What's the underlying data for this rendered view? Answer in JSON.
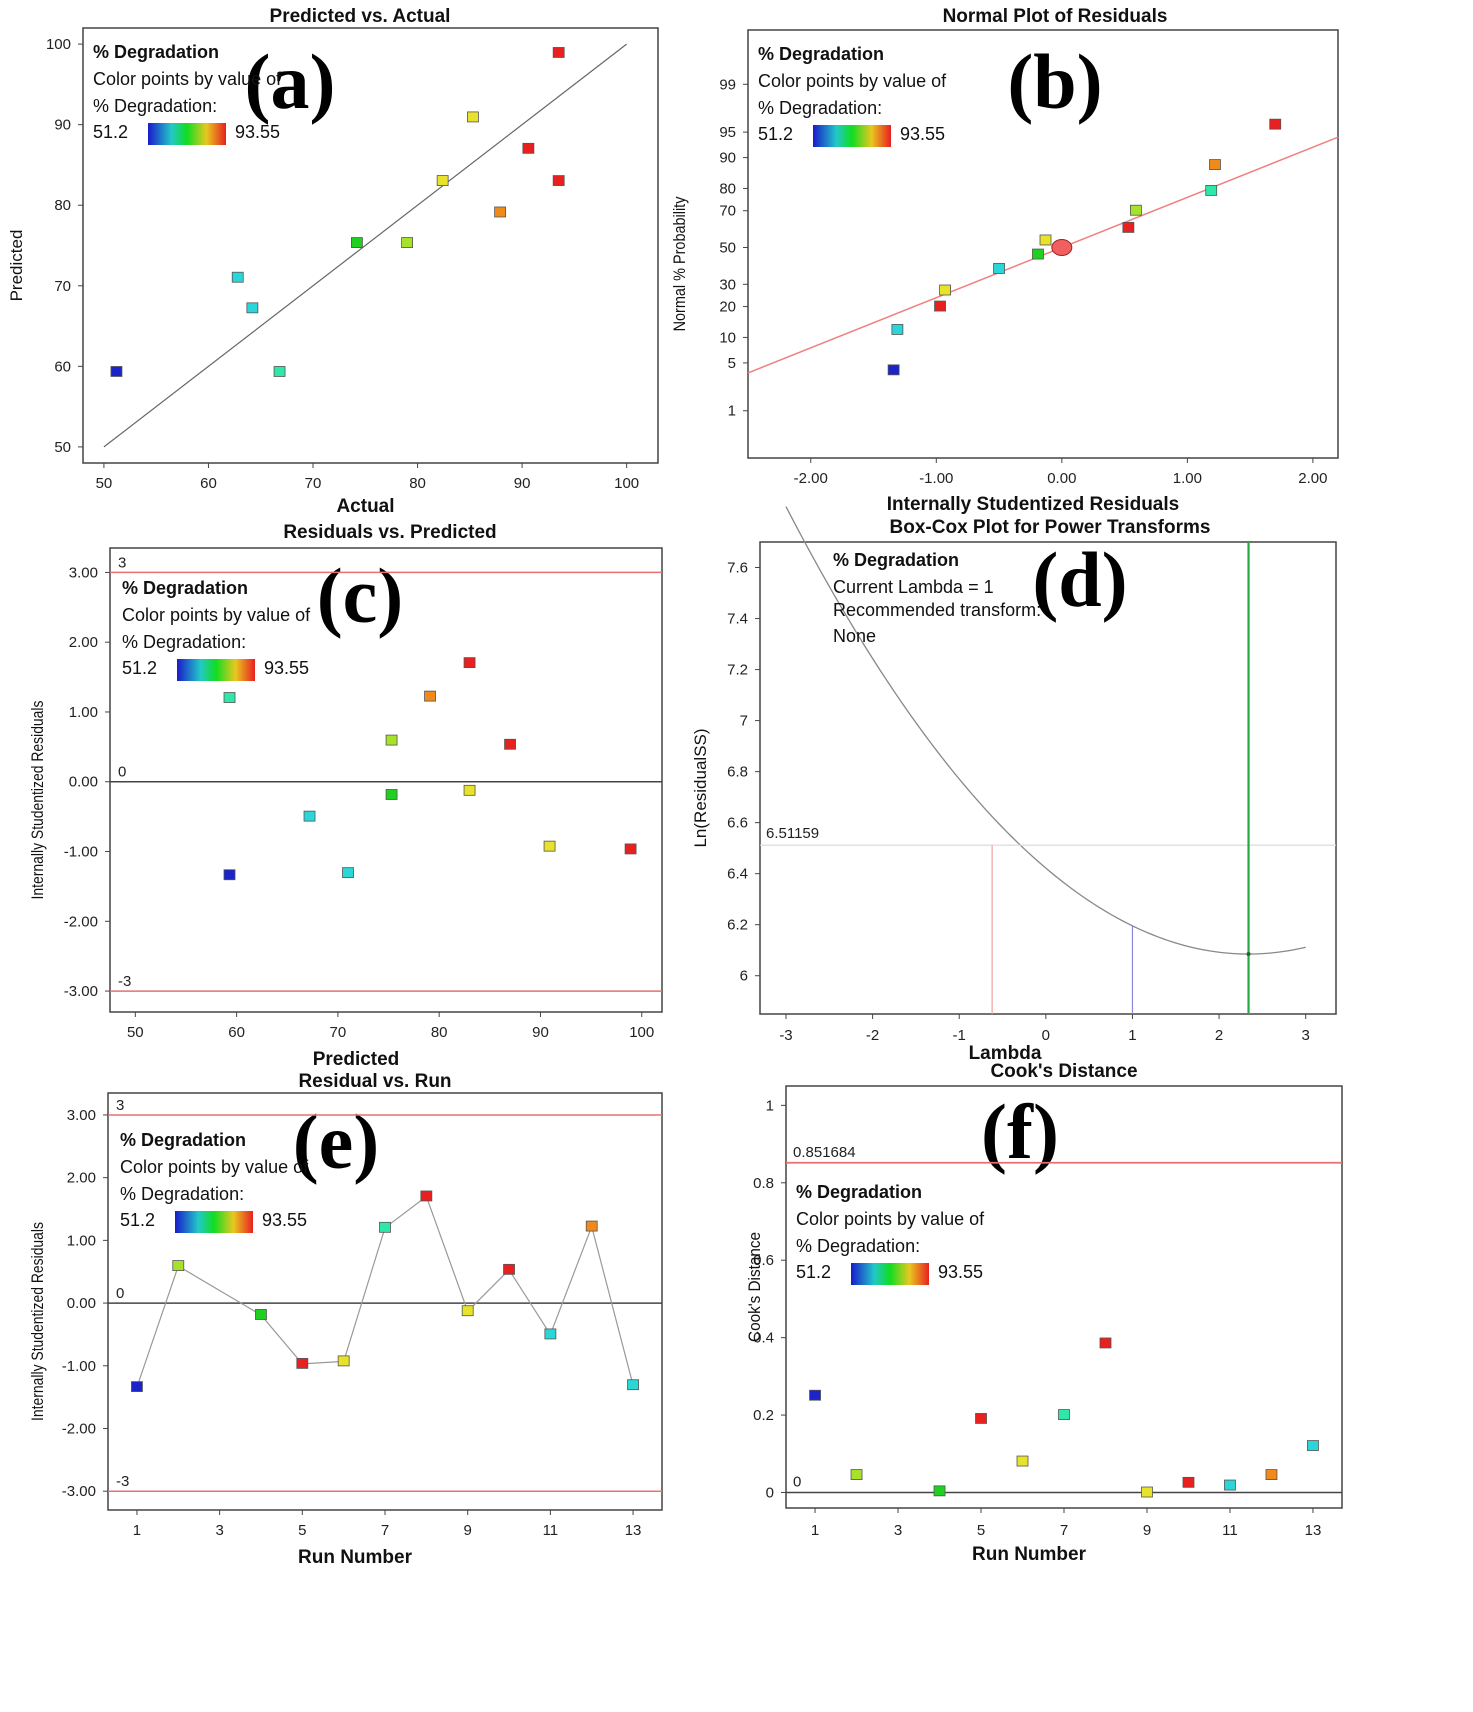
{
  "legend": {
    "title": "% Degradation",
    "line1": "Color points by value of",
    "line2": "% Degradation:",
    "min": "51.2",
    "max": "93.55",
    "min_color": "#2233aa",
    "max_color": "#dd2222"
  },
  "panels": {
    "a": {
      "label": "(a)",
      "title": "Predicted vs. Actual",
      "xlabel": "Actual",
      "ylabel": "Predicted"
    },
    "b": {
      "label": "(b)",
      "title": "Normal Plot of Residuals",
      "xlabel": "Internally Studentized Residuals",
      "ylabel": "Normal % Probability"
    },
    "c": {
      "label": "(c)",
      "title": "Residuals vs. Predicted",
      "xlabel": "Predicted",
      "ylabel": "Internally Studentized Residuals",
      "upper_ref": "3",
      "zero_ref": "0",
      "lower_ref": "-3"
    },
    "d": {
      "label": "(d)",
      "title": "Box-Cox Plot for Power Transforms",
      "xlabel": "Lambda",
      "ylabel": "Ln(ResidualSS)",
      "legend_title": "% Degradation",
      "current_lambda": "Current Lambda = 1",
      "recommended": "Recommended transform:",
      "recommended_value": "None",
      "ci_label": "6.51159"
    },
    "e": {
      "label": "(e)",
      "title": "Residual vs. Run",
      "xlabel": "Run Number",
      "ylabel": "Internally Studentized Residuals",
      "upper_ref": "3",
      "zero_ref": "0",
      "lower_ref": "-3"
    },
    "f": {
      "label": "(f)",
      "title": "Cook's Distance",
      "xlabel": "Run Number",
      "ylabel": "Cook's Distance",
      "upper_ref": "0.851684",
      "zero_ref": "0"
    }
  },
  "chart_data": [
    {
      "id": "a",
      "type": "scatter",
      "title": "Predicted vs. Actual",
      "xlabel": "Actual",
      "ylabel": "Predicted",
      "xlim": [
        48,
        103
      ],
      "ylim": [
        48,
        102
      ],
      "xticks": [
        "50",
        "60",
        "70",
        "80",
        "90",
        "100"
      ],
      "yticks": [
        "50",
        "60",
        "70",
        "80",
        "90",
        "100"
      ],
      "points": [
        {
          "x": 51.2,
          "y": 59.3,
          "c": "#1a24c8"
        },
        {
          "x": 62.8,
          "y": 71.0,
          "c": "#2bd6d8"
        },
        {
          "x": 64.2,
          "y": 67.2,
          "c": "#2bd6d8"
        },
        {
          "x": 66.8,
          "y": 59.3,
          "c": "#2de8a8"
        },
        {
          "x": 74.2,
          "y": 75.3,
          "c": "#1fd01f"
        },
        {
          "x": 79.0,
          "y": 75.3,
          "c": "#a6e22a"
        },
        {
          "x": 82.4,
          "y": 83.0,
          "c": "#e8e22a"
        },
        {
          "x": 85.3,
          "y": 90.9,
          "c": "#e8e22a"
        },
        {
          "x": 87.9,
          "y": 79.1,
          "c": "#f08a1a"
        },
        {
          "x": 90.6,
          "y": 87.0,
          "c": "#e82020"
        },
        {
          "x": 93.5,
          "y": 83.0,
          "c": "#e82020"
        },
        {
          "x": 93.5,
          "y": 98.9,
          "c": "#e82020"
        }
      ],
      "ref_line": [
        [
          50,
          50
        ],
        [
          100,
          100
        ]
      ]
    },
    {
      "id": "b",
      "type": "scatter",
      "title": "Normal Plot of Residuals",
      "xlabel": "Internally Studentized Residuals",
      "ylabel": "Normal % Probability",
      "xlim": [
        -2.5,
        2.2
      ],
      "ylim_probit": [
        -3.0,
        3.1
      ],
      "xticks": [
        "-2.00",
        "-1.00",
        "0.00",
        "1.00",
        "2.00"
      ],
      "yticks": [
        "1",
        "5",
        "10",
        "20",
        "30",
        "50",
        "70",
        "80",
        "90",
        "95",
        "99"
      ],
      "points": [
        {
          "x": -1.34,
          "p": 4,
          "c": "#1a24c8"
        },
        {
          "x": -1.31,
          "p": 12,
          "c": "#2bd6d8"
        },
        {
          "x": -0.97,
          "p": 20,
          "c": "#e82020"
        },
        {
          "x": -0.93,
          "p": 27,
          "c": "#e8e22a"
        },
        {
          "x": -0.5,
          "p": 38,
          "c": "#2bd6d8"
        },
        {
          "x": -0.19,
          "p": 46,
          "c": "#1fd01f"
        },
        {
          "x": -0.13,
          "p": 54,
          "c": "#e8e22a"
        },
        {
          "x": 0.53,
          "p": 61,
          "c": "#e82020"
        },
        {
          "x": 0.59,
          "p": 70,
          "c": "#a6e22a"
        },
        {
          "x": 1.19,
          "p": 79,
          "c": "#2de8a8"
        },
        {
          "x": 1.22,
          "p": 88,
          "c": "#f08a1a"
        },
        {
          "x": 1.7,
          "p": 96,
          "c": "#e82020"
        }
      ],
      "center_point": {
        "x": 0.0,
        "p": 50
      },
      "ref_line": {
        "slope_per_z": 0.715
      }
    },
    {
      "id": "c",
      "type": "scatter",
      "title": "Residuals vs. Predicted",
      "xlabel": "Predicted",
      "ylabel": "Internally Studentized Residuals",
      "xlim": [
        47.5,
        102
      ],
      "ylim": [
        -3.3,
        3.35
      ],
      "xticks": [
        "50",
        "60",
        "70",
        "80",
        "90",
        "100"
      ],
      "yticks": [
        "-3.00",
        "-2.00",
        "-1.00",
        "0.00",
        "1.00",
        "2.00",
        "3.00"
      ],
      "ref_lines": [
        3,
        0,
        -3
      ],
      "points": [
        {
          "x": 59.3,
          "y": 1.2,
          "c": "#2de8a8"
        },
        {
          "x": 59.3,
          "y": -1.34,
          "c": "#1a24c8"
        },
        {
          "x": 67.2,
          "y": -0.5,
          "c": "#2bd6d8"
        },
        {
          "x": 71.0,
          "y": -1.31,
          "c": "#2bd6d8"
        },
        {
          "x": 75.3,
          "y": 0.59,
          "c": "#a6e22a"
        },
        {
          "x": 75.3,
          "y": -0.19,
          "c": "#1fd01f"
        },
        {
          "x": 79.1,
          "y": 1.22,
          "c": "#f08a1a"
        },
        {
          "x": 83.0,
          "y": 1.7,
          "c": "#e82020"
        },
        {
          "x": 83.0,
          "y": -0.13,
          "c": "#e8e22a"
        },
        {
          "x": 87.0,
          "y": 0.53,
          "c": "#e82020"
        },
        {
          "x": 90.9,
          "y": -0.93,
          "c": "#e8e22a"
        },
        {
          "x": 98.9,
          "y": -0.97,
          "c": "#e82020"
        }
      ]
    },
    {
      "id": "d",
      "type": "line",
      "title": "Box-Cox Plot for Power Transforms",
      "xlabel": "Lambda",
      "ylabel": "Ln(ResidualSS)",
      "xlim": [
        -3.3,
        3.35
      ],
      "ylim": [
        5.85,
        7.7
      ],
      "xticks": [
        "-3",
        "-2",
        "-1",
        "0",
        "1",
        "2",
        "3"
      ],
      "yticks": [
        "6",
        "6.2",
        "6.4",
        "6.6",
        "6.8",
        "7",
        "7.2",
        "7.4",
        "7.6"
      ],
      "curve": {
        "vertex_lambda": 2.34,
        "vertex_value": 6.085,
        "a": 0.0615,
        "from": -3,
        "to": 3
      },
      "ci_value": 6.51159,
      "ci_low_lambda": -0.62,
      "current_lambda": 1,
      "best_lambda": 2.34
    },
    {
      "id": "e",
      "type": "line",
      "title": "Residual vs. Run",
      "xlabel": "Run Number",
      "ylabel": "Internally Studentized Residuals",
      "xlim": [
        0.3,
        13.7
      ],
      "ylim": [
        -3.3,
        3.35
      ],
      "xticks": [
        "1",
        "3",
        "5",
        "7",
        "9",
        "11",
        "13"
      ],
      "yticks": [
        "-3.00",
        "-2.00",
        "-1.00",
        "0.00",
        "1.00",
        "2.00",
        "3.00"
      ],
      "ref_lines": [
        3,
        0,
        -3
      ],
      "points": [
        {
          "x": 1,
          "y": -1.34,
          "c": "#1a24c8"
        },
        {
          "x": 2,
          "y": 0.59,
          "c": "#a6e22a"
        },
        {
          "x": 4,
          "y": -0.19,
          "c": "#1fd01f"
        },
        {
          "x": 5,
          "y": -0.97,
          "c": "#e82020"
        },
        {
          "x": 6,
          "y": -0.93,
          "c": "#e8e22a"
        },
        {
          "x": 7,
          "y": 1.2,
          "c": "#2de8a8"
        },
        {
          "x": 8,
          "y": 1.7,
          "c": "#e82020"
        },
        {
          "x": 9,
          "y": -0.13,
          "c": "#e8e22a"
        },
        {
          "x": 10,
          "y": 0.53,
          "c": "#e82020"
        },
        {
          "x": 11,
          "y": -0.5,
          "c": "#2bd6d8"
        },
        {
          "x": 12,
          "y": 1.22,
          "c": "#f08a1a"
        },
        {
          "x": 13,
          "y": -1.31,
          "c": "#2bd6d8"
        }
      ]
    },
    {
      "id": "f",
      "type": "scatter",
      "title": "Cook's Distance",
      "xlabel": "Run Number",
      "ylabel": "Cook's Distance",
      "xlim": [
        0.3,
        13.7
      ],
      "ylim": [
        -0.04,
        1.05
      ],
      "xticks": [
        "1",
        "3",
        "5",
        "7",
        "9",
        "11",
        "13"
      ],
      "yticks": [
        "0",
        "0.2",
        "0.4",
        "0.6",
        "0.8",
        "1"
      ],
      "ref_lines": [
        0.851684,
        0
      ],
      "points": [
        {
          "x": 1,
          "y": 0.25,
          "c": "#1a24c8"
        },
        {
          "x": 2,
          "y": 0.045,
          "c": "#a6e22a"
        },
        {
          "x": 4,
          "y": 0.003,
          "c": "#1fd01f"
        },
        {
          "x": 5,
          "y": 0.19,
          "c": "#e82020"
        },
        {
          "x": 6,
          "y": 0.08,
          "c": "#e8e22a"
        },
        {
          "x": 7,
          "y": 0.2,
          "c": "#2de8a8"
        },
        {
          "x": 8,
          "y": 0.385,
          "c": "#e82020"
        },
        {
          "x": 9,
          "y": 0.0,
          "c": "#e8e22a"
        },
        {
          "x": 10,
          "y": 0.025,
          "c": "#e82020"
        },
        {
          "x": 11,
          "y": 0.018,
          "c": "#2bd6d8"
        },
        {
          "x": 12,
          "y": 0.045,
          "c": "#f08a1a"
        },
        {
          "x": 13,
          "y": 0.12,
          "c": "#2bd6d8"
        }
      ]
    }
  ]
}
